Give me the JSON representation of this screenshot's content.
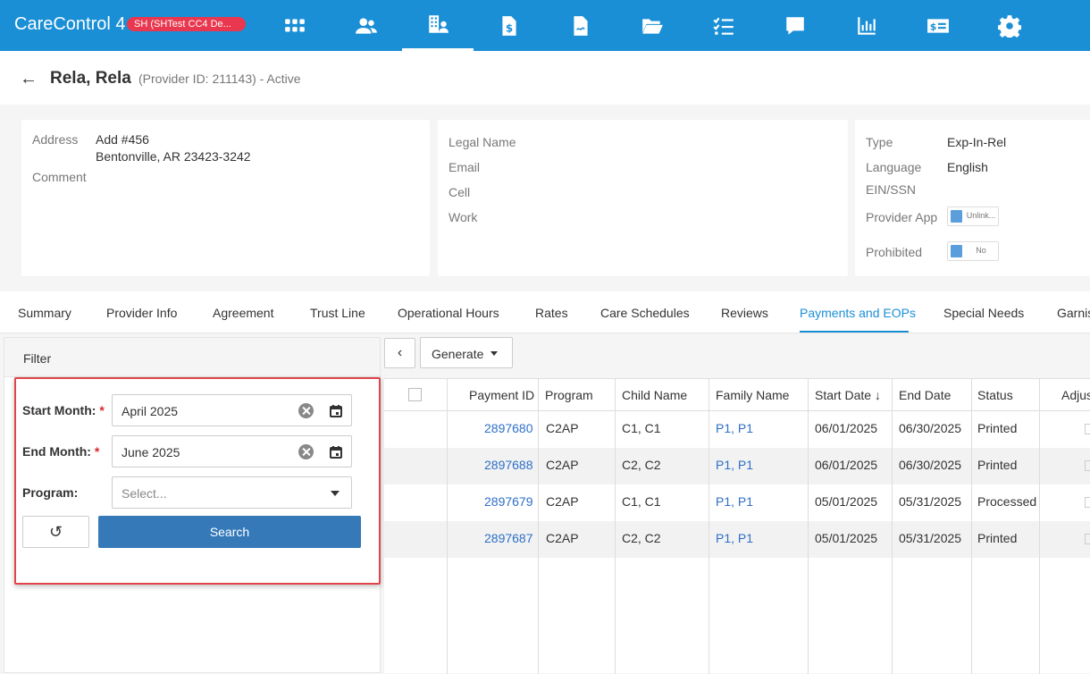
{
  "app": {
    "title": "CareControl 4",
    "env_badge": "SH (SHTest CC4 De..."
  },
  "nav": [
    {
      "name": "apps-grid-icon"
    },
    {
      "name": "people-icon"
    },
    {
      "name": "provider-building-icon"
    },
    {
      "name": "payment-document-icon"
    },
    {
      "name": "signed-document-icon"
    },
    {
      "name": "folder-open-icon"
    },
    {
      "name": "checklist-icon"
    },
    {
      "name": "message-icon"
    },
    {
      "name": "report-chart-icon"
    },
    {
      "name": "billing-card-icon"
    },
    {
      "name": "settings-gear-icon"
    }
  ],
  "provider": {
    "name": "Rela, Rela",
    "meta": "(Provider ID: 211143) - Active"
  },
  "card1": {
    "address_label": "Address",
    "address_line1": "Add #456",
    "address_line2": "Bentonville, AR 23423-3242",
    "comment_label": "Comment"
  },
  "card2": {
    "legal_name_label": "Legal Name",
    "email_label": "Email",
    "cell_label": "Cell",
    "work_label": "Work"
  },
  "card3": {
    "type_label": "Type",
    "type_value": "Exp-In-Rel",
    "language_label": "Language",
    "language_value": "English",
    "ein_label": "EIN/SSN",
    "app_label": "Provider App",
    "app_toggle": "Unlink...",
    "prohibited_label": "Prohibited",
    "prohibited_toggle": "No"
  },
  "tabs": [
    "Summary",
    "Provider Info",
    "Agreement",
    "Trust Line",
    "Operational Hours",
    "Rates",
    "Care Schedules",
    "Reviews",
    "Payments and EOPs",
    "Special Needs",
    "Garnis"
  ],
  "active_tab": "Payments and EOPs",
  "filter": {
    "title": "Filter",
    "start_label": "Start Month:",
    "start_value": "April 2025",
    "end_label": "End Month:",
    "end_value": "June 2025",
    "program_label": "Program:",
    "program_placeholder": "Select...",
    "required_mark": "*",
    "search_label": "Search",
    "reset_icon": "↺"
  },
  "toolbar": {
    "back_icon": "‹",
    "generate_label": "Generate"
  },
  "table": {
    "headers": [
      "Payment ID",
      "Program",
      "Child Name",
      "Family Name",
      "Start Date",
      "End Date",
      "Status",
      "Adjus"
    ],
    "sort_icon": "↓",
    "rows": [
      [
        "2897680",
        "C2AP",
        "C1, C1",
        "P1, P1",
        "06/01/2025",
        "06/30/2025",
        "Printed"
      ],
      [
        "2897688",
        "C2AP",
        "C2, C2",
        "P1, P1",
        "06/01/2025",
        "06/30/2025",
        "Printed"
      ],
      [
        "2897679",
        "C2AP",
        "C1, C1",
        "P1, P1",
        "05/01/2025",
        "05/31/2025",
        "Processed"
      ],
      [
        "2897687",
        "C2AP",
        "C2, C2",
        "P1, P1",
        "05/01/2025",
        "05/31/2025",
        "Printed"
      ]
    ]
  },
  "colors": {
    "topbar": "#1a8fd6",
    "accent": "#1a8fd6",
    "link": "#2e6fc7",
    "badge": "#e8374e",
    "search_button": "#3579b9",
    "highlight_box": "#e0454a"
  }
}
